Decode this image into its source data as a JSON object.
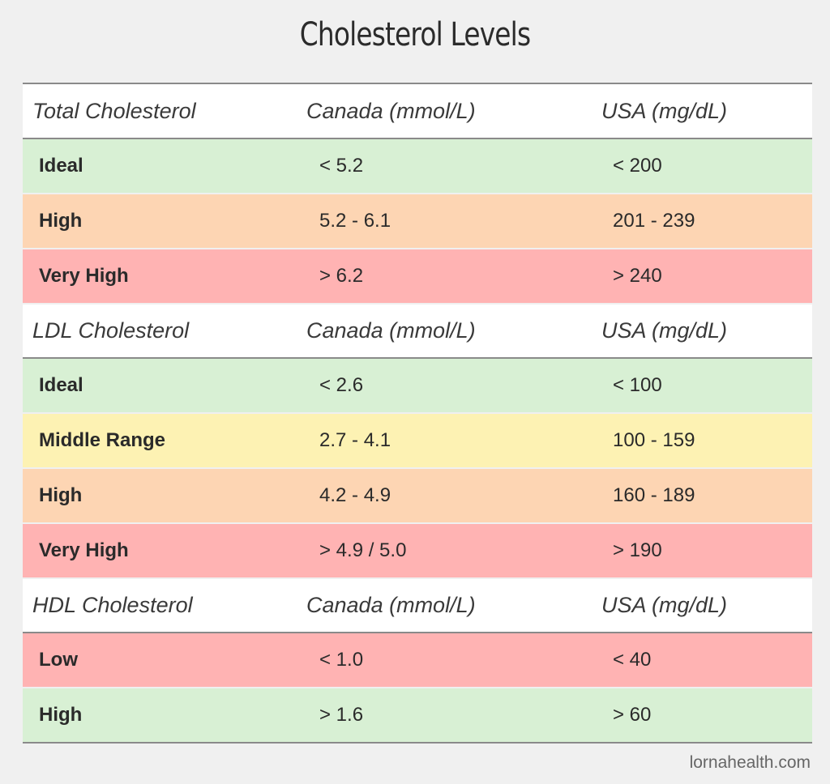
{
  "title": "Cholesterol Levels",
  "colors": {
    "green": "#d8f0d4",
    "orange": "#fdd5b3",
    "red": "#ffb3b3",
    "yellow": "#fdf2b3"
  },
  "sections": [
    {
      "header": [
        "Total Cholesterol",
        "Canada (mmol/L)",
        "USA (mg/dL)"
      ],
      "rows": [
        {
          "label": "Ideal",
          "canada": "< 5.2",
          "usa": "< 200",
          "color": "green"
        },
        {
          "label": "High",
          "canada": "5.2 - 6.1",
          "usa": "201 - 239",
          "color": "orange"
        },
        {
          "label": "Very High",
          "canada": "> 6.2",
          "usa": "> 240",
          "color": "red"
        }
      ]
    },
    {
      "header": [
        "LDL Cholesterol",
        "Canada (mmol/L)",
        "USA (mg/dL)"
      ],
      "rows": [
        {
          "label": "Ideal",
          "canada": "< 2.6",
          "usa": "< 100",
          "color": "green"
        },
        {
          "label": "Middle Range",
          "canada": "2.7 - 4.1",
          "usa": "100 - 159",
          "color": "yellow"
        },
        {
          "label": "High",
          "canada": "4.2 - 4.9",
          "usa": "160 - 189",
          "color": "orange"
        },
        {
          "label": "Very High",
          "canada": "> 4.9 / 5.0",
          "usa": "> 190",
          "color": "red"
        }
      ]
    },
    {
      "header": [
        "HDL Cholesterol",
        "Canada (mmol/L)",
        "USA (mg/dL)"
      ],
      "rows": [
        {
          "label": "Low",
          "canada": "< 1.0",
          "usa": "< 40",
          "color": "red"
        },
        {
          "label": "High",
          "canada": "> 1.6",
          "usa": "> 60",
          "color": "green"
        }
      ]
    }
  ],
  "footer": "lornahealth.com"
}
